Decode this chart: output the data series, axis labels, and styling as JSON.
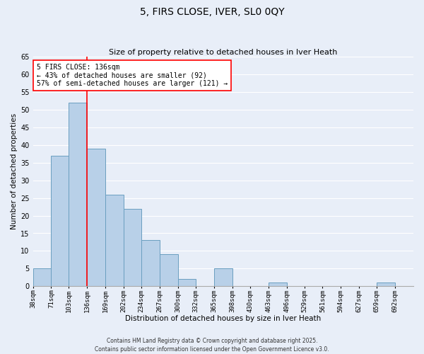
{
  "title": "5, FIRS CLOSE, IVER, SL0 0QY",
  "subtitle": "Size of property relative to detached houses in Iver Heath",
  "xlabel": "Distribution of detached houses by size in Iver Heath",
  "ylabel": "Number of detached properties",
  "bin_labels": [
    "38sqm",
    "71sqm",
    "103sqm",
    "136sqm",
    "169sqm",
    "202sqm",
    "234sqm",
    "267sqm",
    "300sqm",
    "332sqm",
    "365sqm",
    "398sqm",
    "430sqm",
    "463sqm",
    "496sqm",
    "529sqm",
    "561sqm",
    "594sqm",
    "627sqm",
    "659sqm",
    "692sqm"
  ],
  "bin_edges": [
    38,
    71,
    103,
    136,
    169,
    202,
    234,
    267,
    300,
    332,
    365,
    398,
    430,
    463,
    496,
    529,
    561,
    594,
    627,
    659,
    692,
    725
  ],
  "counts": [
    5,
    37,
    52,
    39,
    26,
    22,
    13,
    9,
    2,
    0,
    5,
    0,
    0,
    1,
    0,
    0,
    0,
    0,
    0,
    1,
    0
  ],
  "bar_color": "#b8d0e8",
  "bar_edge_color": "#6a9fc0",
  "vline_x": 136,
  "vline_color": "red",
  "ylim": [
    0,
    65
  ],
  "yticks": [
    0,
    5,
    10,
    15,
    20,
    25,
    30,
    35,
    40,
    45,
    50,
    55,
    60,
    65
  ],
  "annotation_text": "5 FIRS CLOSE: 136sqm\n← 43% of detached houses are smaller (92)\n57% of semi-detached houses are larger (121) →",
  "annotation_box_color": "white",
  "annotation_box_edge_color": "red",
  "footer_line1": "Contains HM Land Registry data © Crown copyright and database right 2025.",
  "footer_line2": "Contains public sector information licensed under the Open Government Licence v3.0.",
  "background_color": "#e8eef8",
  "grid_color": "white",
  "title_fontsize": 10,
  "subtitle_fontsize": 8,
  "xlabel_fontsize": 7.5,
  "ylabel_fontsize": 7.5,
  "xtick_fontsize": 6.5,
  "ytick_fontsize": 7,
  "annotation_fontsize": 7,
  "footer_fontsize": 5.5
}
